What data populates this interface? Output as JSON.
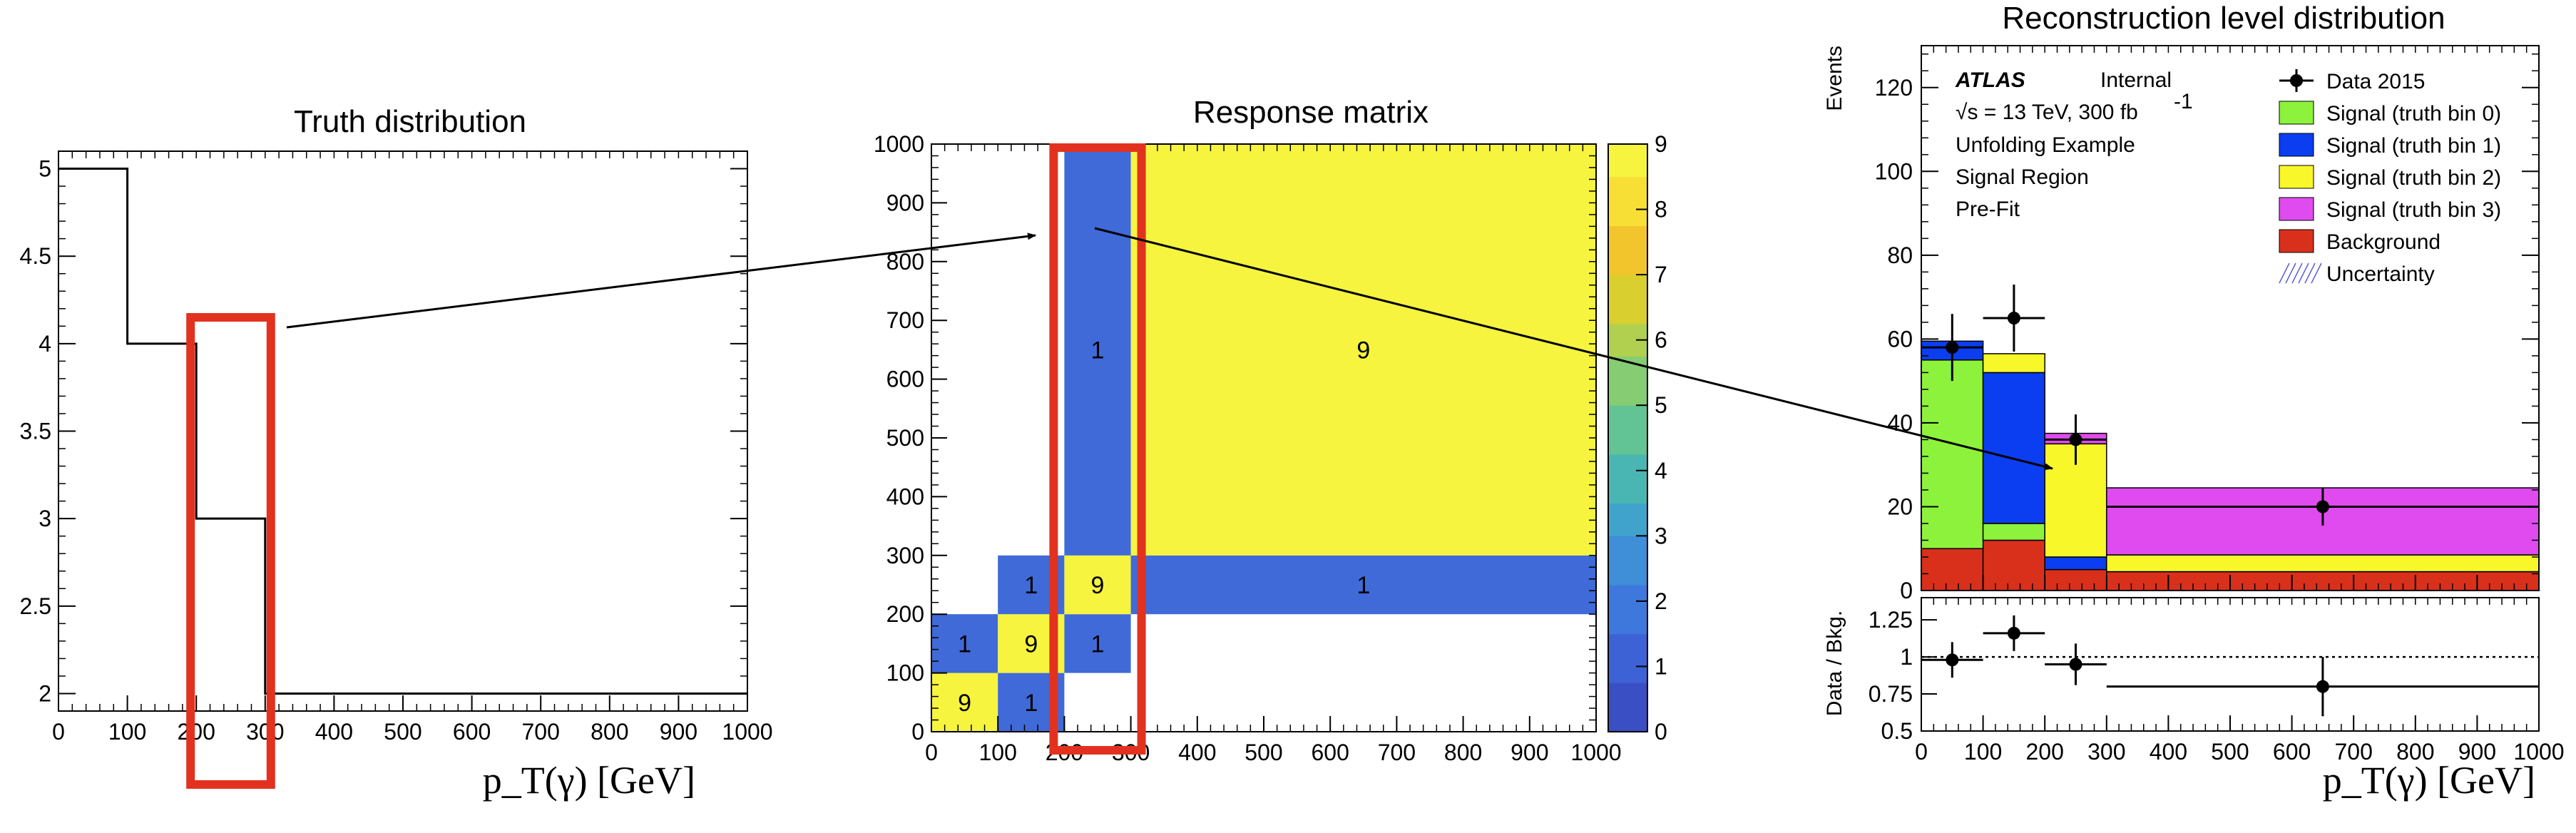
{
  "colors": {
    "highlight": "#e2321f",
    "signal0": "#8df23c",
    "signal1": "#0a3ef0",
    "signal2": "#f7f72a",
    "signal3": "#df4bef",
    "background": "#d9301c",
    "cell_blue": "#3f6ad8",
    "cell_yellow": "#f6f43f"
  },
  "annotations": {
    "arrows": [
      {
        "from": "truth-highlight",
        "to": "response-highlight"
      },
      {
        "from": "response-highlight",
        "to": "reco-bin-2"
      }
    ]
  },
  "chart_data": [
    {
      "id": "truth",
      "type": "step",
      "title": "Truth distribution",
      "xlabel": "p_T(γ)  [GeV]",
      "xlim": [
        0,
        1000
      ],
      "ylim": [
        1.9,
        5.1
      ],
      "xticks": [
        "0",
        "100",
        "200",
        "300",
        "400",
        "500",
        "600",
        "700",
        "800",
        "900",
        "1000"
      ],
      "yticks": [
        "2",
        "2.5",
        "3",
        "3.5",
        "4",
        "4.5",
        "5"
      ],
      "bins": [
        {
          "x0": 0,
          "x1": 100,
          "y": 5
        },
        {
          "x0": 100,
          "x1": 200,
          "y": 4
        },
        {
          "x0": 200,
          "x1": 300,
          "y": 3
        },
        {
          "x0": 300,
          "x1": 1000,
          "y": 2
        }
      ],
      "highlight_range": [
        200,
        300
      ]
    },
    {
      "id": "response",
      "type": "heatmap",
      "title": "Response matrix",
      "xlim": [
        0,
        1000
      ],
      "ylim": [
        0,
        1000
      ],
      "xticks": [
        "0",
        "100",
        "200",
        "300",
        "400",
        "500",
        "600",
        "700",
        "800",
        "900",
        "1000"
      ],
      "yticks": [
        "0",
        "100",
        "200",
        "300",
        "400",
        "500",
        "600",
        "700",
        "800",
        "900",
        "1000"
      ],
      "color_scale": {
        "min": 0,
        "max": 9,
        "ticks": [
          "0",
          "1",
          "2",
          "3",
          "4",
          "5",
          "6",
          "7",
          "8",
          "9"
        ]
      },
      "cells": [
        {
          "x0": 0,
          "x1": 100,
          "y0": 0,
          "y1": 100,
          "value": 9,
          "label": "9"
        },
        {
          "x0": 100,
          "x1": 200,
          "y0": 0,
          "y1": 100,
          "value": 1,
          "label": "1"
        },
        {
          "x0": 0,
          "x1": 100,
          "y0": 100,
          "y1": 200,
          "value": 1,
          "label": "1"
        },
        {
          "x0": 100,
          "x1": 200,
          "y0": 100,
          "y1": 200,
          "value": 9,
          "label": "9"
        },
        {
          "x0": 200,
          "x1": 300,
          "y0": 100,
          "y1": 200,
          "value": 1,
          "label": "1"
        },
        {
          "x0": 100,
          "x1": 200,
          "y0": 200,
          "y1": 300,
          "value": 1,
          "label": "1"
        },
        {
          "x0": 200,
          "x1": 300,
          "y0": 200,
          "y1": 300,
          "value": 9,
          "label": "9"
        },
        {
          "x0": 300,
          "x1": 1000,
          "y0": 200,
          "y1": 300,
          "value": 1,
          "label": "1"
        },
        {
          "x0": 200,
          "x1": 300,
          "y0": 300,
          "y1": 1000,
          "value": 1,
          "label": "1"
        },
        {
          "x0": 300,
          "x1": 1000,
          "y0": 300,
          "y1": 1000,
          "value": 9,
          "label": "9"
        }
      ],
      "highlight_range": [
        200,
        300
      ]
    },
    {
      "id": "reco",
      "type": "stacked_histogram",
      "title": "Reconstruction level distribution",
      "ylabel": "Events",
      "xlabel": "p_T(γ)  [GeV]",
      "xlim": [
        0,
        1000
      ],
      "ylim": [
        0,
        130
      ],
      "xticks": [
        "0",
        "100",
        "200",
        "300",
        "400",
        "500",
        "600",
        "700",
        "800",
        "900",
        "1000"
      ],
      "yticks": [
        "0",
        "20",
        "40",
        "60",
        "80",
        "100",
        "120"
      ],
      "bin_edges": [
        0,
        100,
        200,
        300,
        1000
      ],
      "series": [
        {
          "name": "Background",
          "color": "#d9301c",
          "values": [
            10,
            12,
            5,
            4.5
          ]
        },
        {
          "name": "Signal (truth bin 0)",
          "color": "#8df23c",
          "values": [
            45,
            4,
            0,
            0
          ]
        },
        {
          "name": "Signal (truth bin 1)",
          "color": "#0a3ef0",
          "values": [
            4.5,
            36,
            3,
            0
          ]
        },
        {
          "name": "Signal (truth bin 2)",
          "color": "#f7f72a",
          "values": [
            0,
            4.5,
            27,
            4
          ]
        },
        {
          "name": "Signal (truth bin 3)",
          "color": "#df4bef",
          "values": [
            0,
            0,
            2.5,
            16
          ]
        }
      ],
      "data_points": {
        "name": "Data 2015",
        "x": [
          50,
          150,
          250,
          650
        ],
        "y": [
          58,
          65,
          36,
          20
        ],
        "yerr": [
          8,
          8,
          6,
          4.5
        ]
      },
      "legend_extra": [
        "Uncertainty"
      ],
      "legend_placement": "top-right",
      "atlas_label": {
        "experiment": "ATLAS",
        "status": "Internal",
        "energy": "√s = 13 TeV, 300 fb",
        "lumi_superscript": "-1",
        "lines": [
          "Unfolding Example",
          "Signal Region",
          "Pre-Fit"
        ]
      },
      "ratio": {
        "ylabel": "Data / Bkg.",
        "ylim": [
          0.5,
          1.4
        ],
        "yticks": [
          "0.5",
          "0.75",
          "1",
          "1.25"
        ],
        "x": [
          50,
          150,
          250,
          650
        ],
        "y": [
          0.98,
          1.16,
          0.95,
          0.8
        ],
        "yerr": [
          0.12,
          0.12,
          0.14,
          0.2
        ],
        "reference": 1
      }
    }
  ]
}
